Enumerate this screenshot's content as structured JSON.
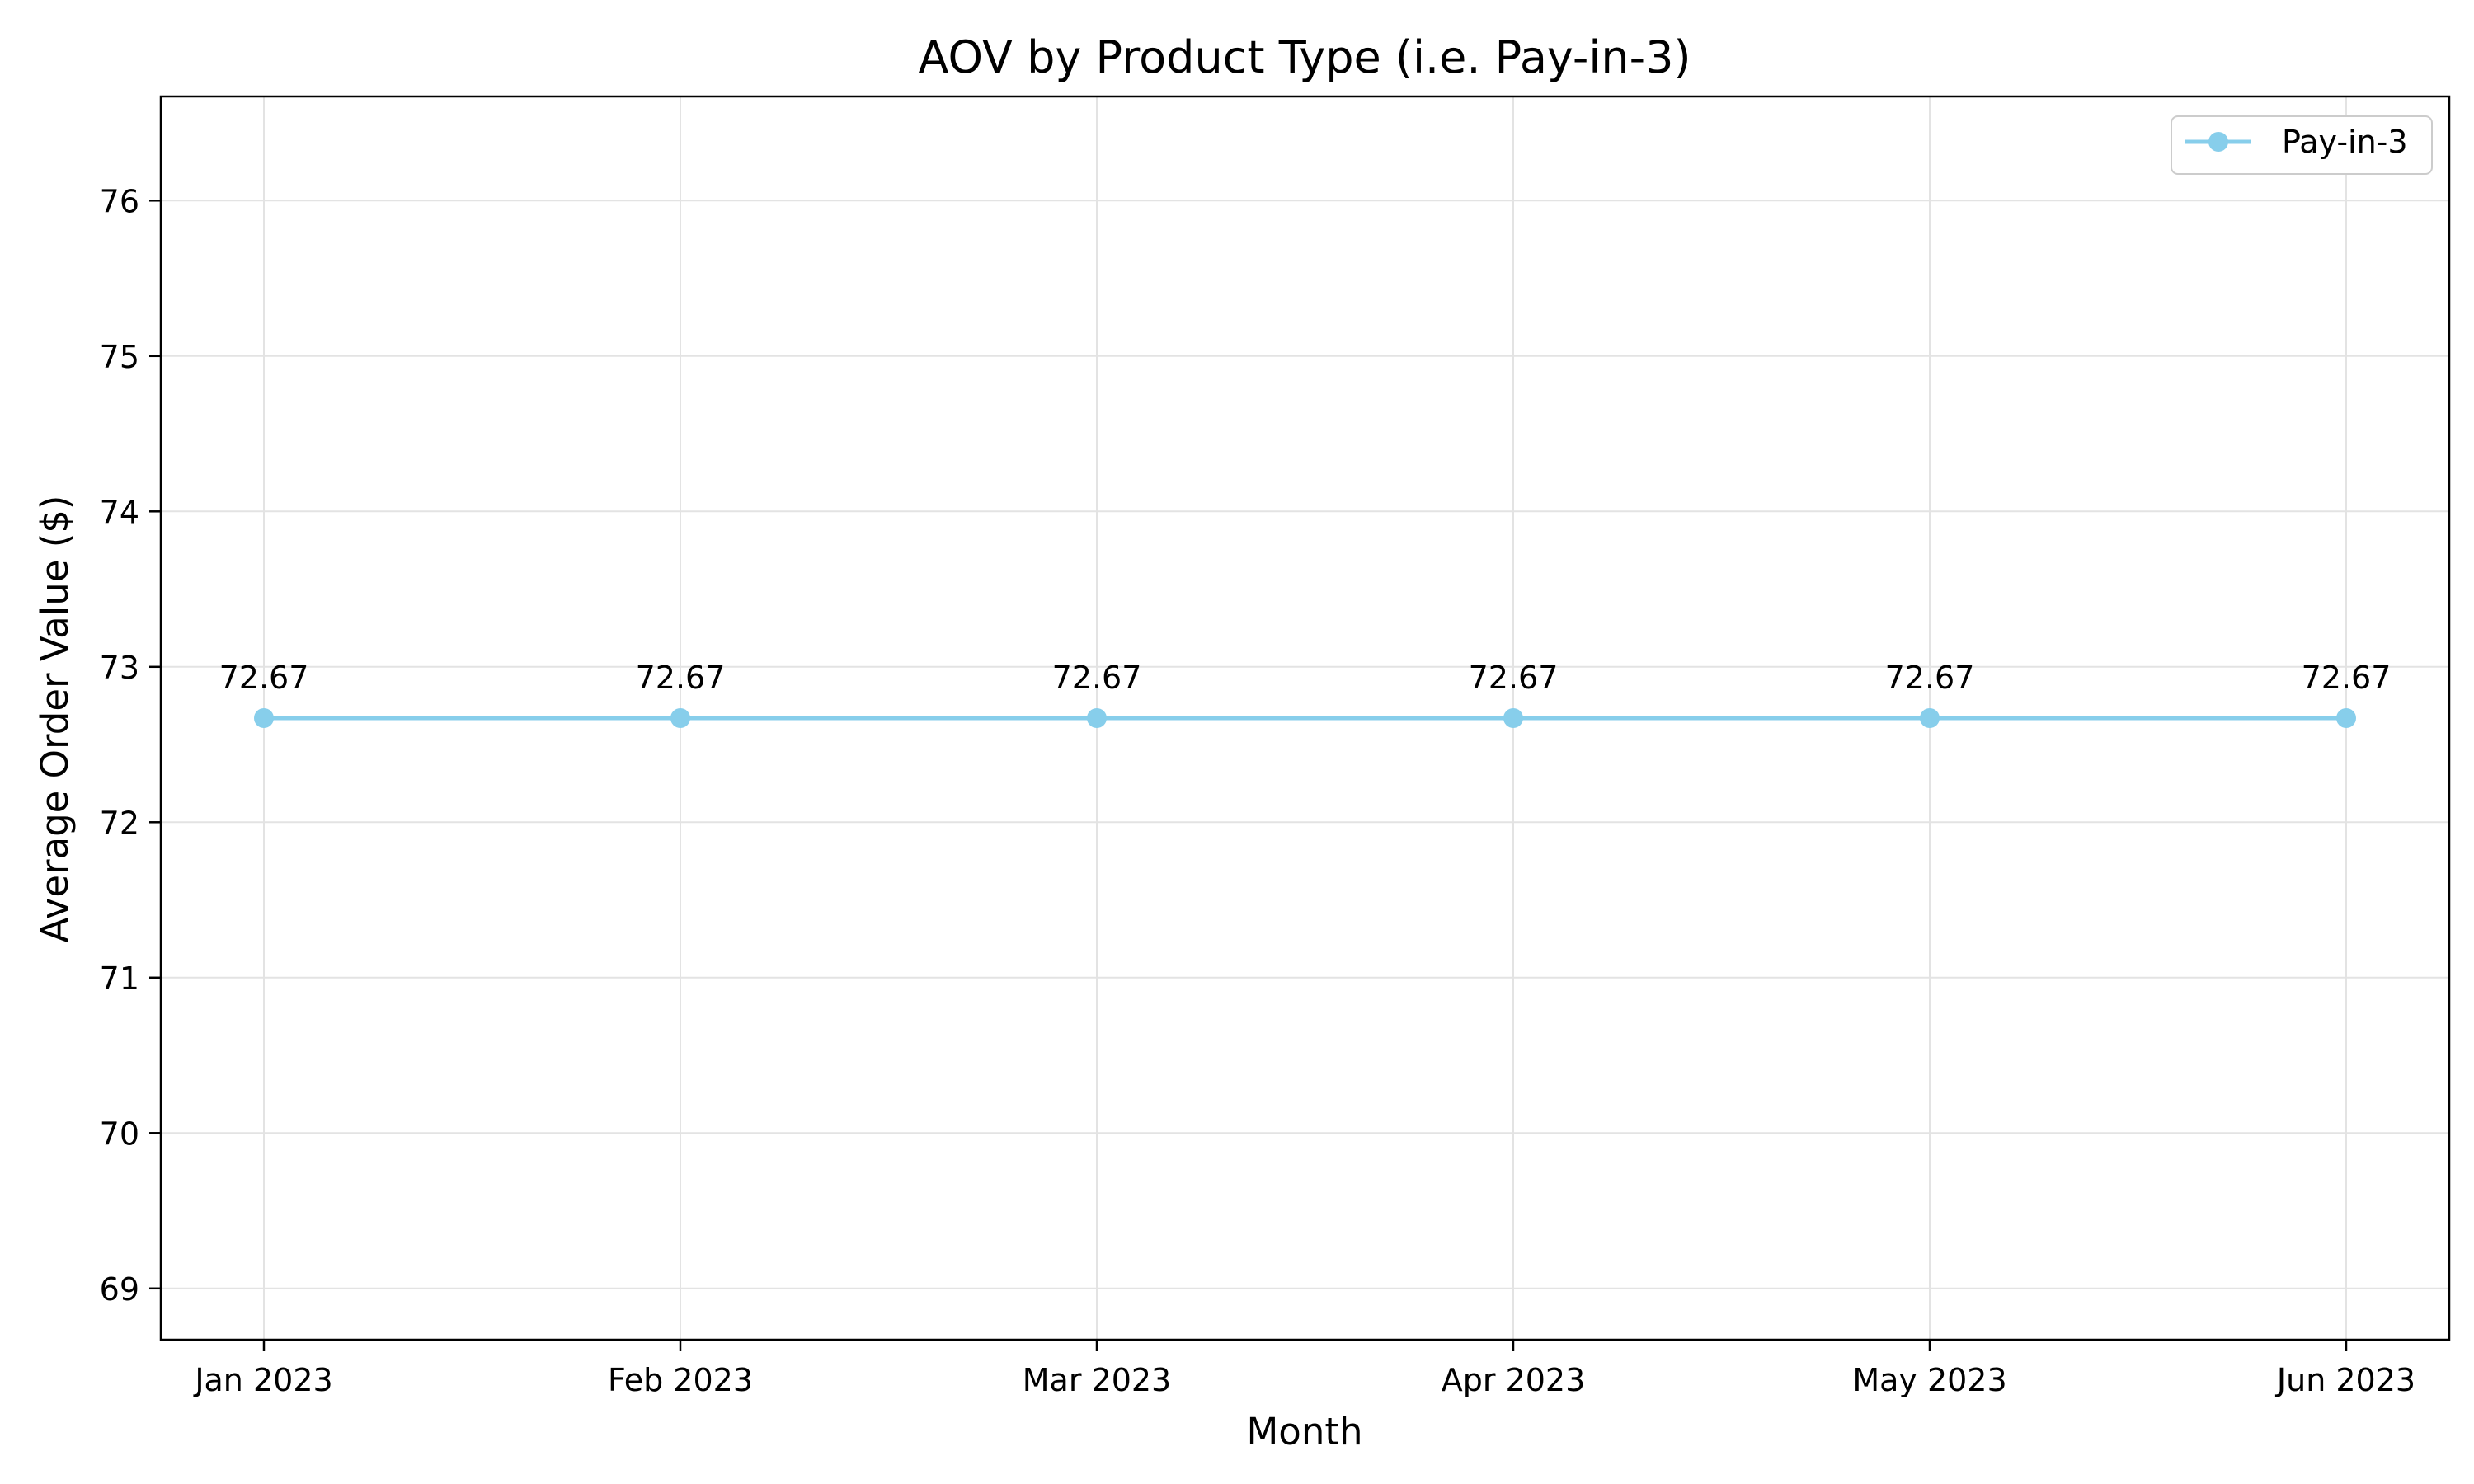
{
  "chart_data": {
    "type": "line",
    "title": "AOV by Product Type (i.e. Pay-in-3)",
    "xlabel": "Month",
    "ylabel": "Average Order Value ($)",
    "categories": [
      "Jan 2023",
      "Feb 2023",
      "Mar 2023",
      "Apr 2023",
      "May 2023",
      "Jun 2023"
    ],
    "series": [
      {
        "name": "Pay-in-3",
        "values": [
          72.67,
          72.67,
          72.67,
          72.67,
          72.67,
          72.67
        ],
        "data_labels": [
          "72.67",
          "72.67",
          "72.67",
          "72.67",
          "72.67",
          "72.67"
        ],
        "color": "#87CEEB"
      }
    ],
    "ylim": [
      68.67,
      76.67
    ],
    "yticks": [
      69,
      70,
      71,
      72,
      73,
      74,
      75,
      76
    ],
    "grid": true,
    "legend": "top-right"
  }
}
